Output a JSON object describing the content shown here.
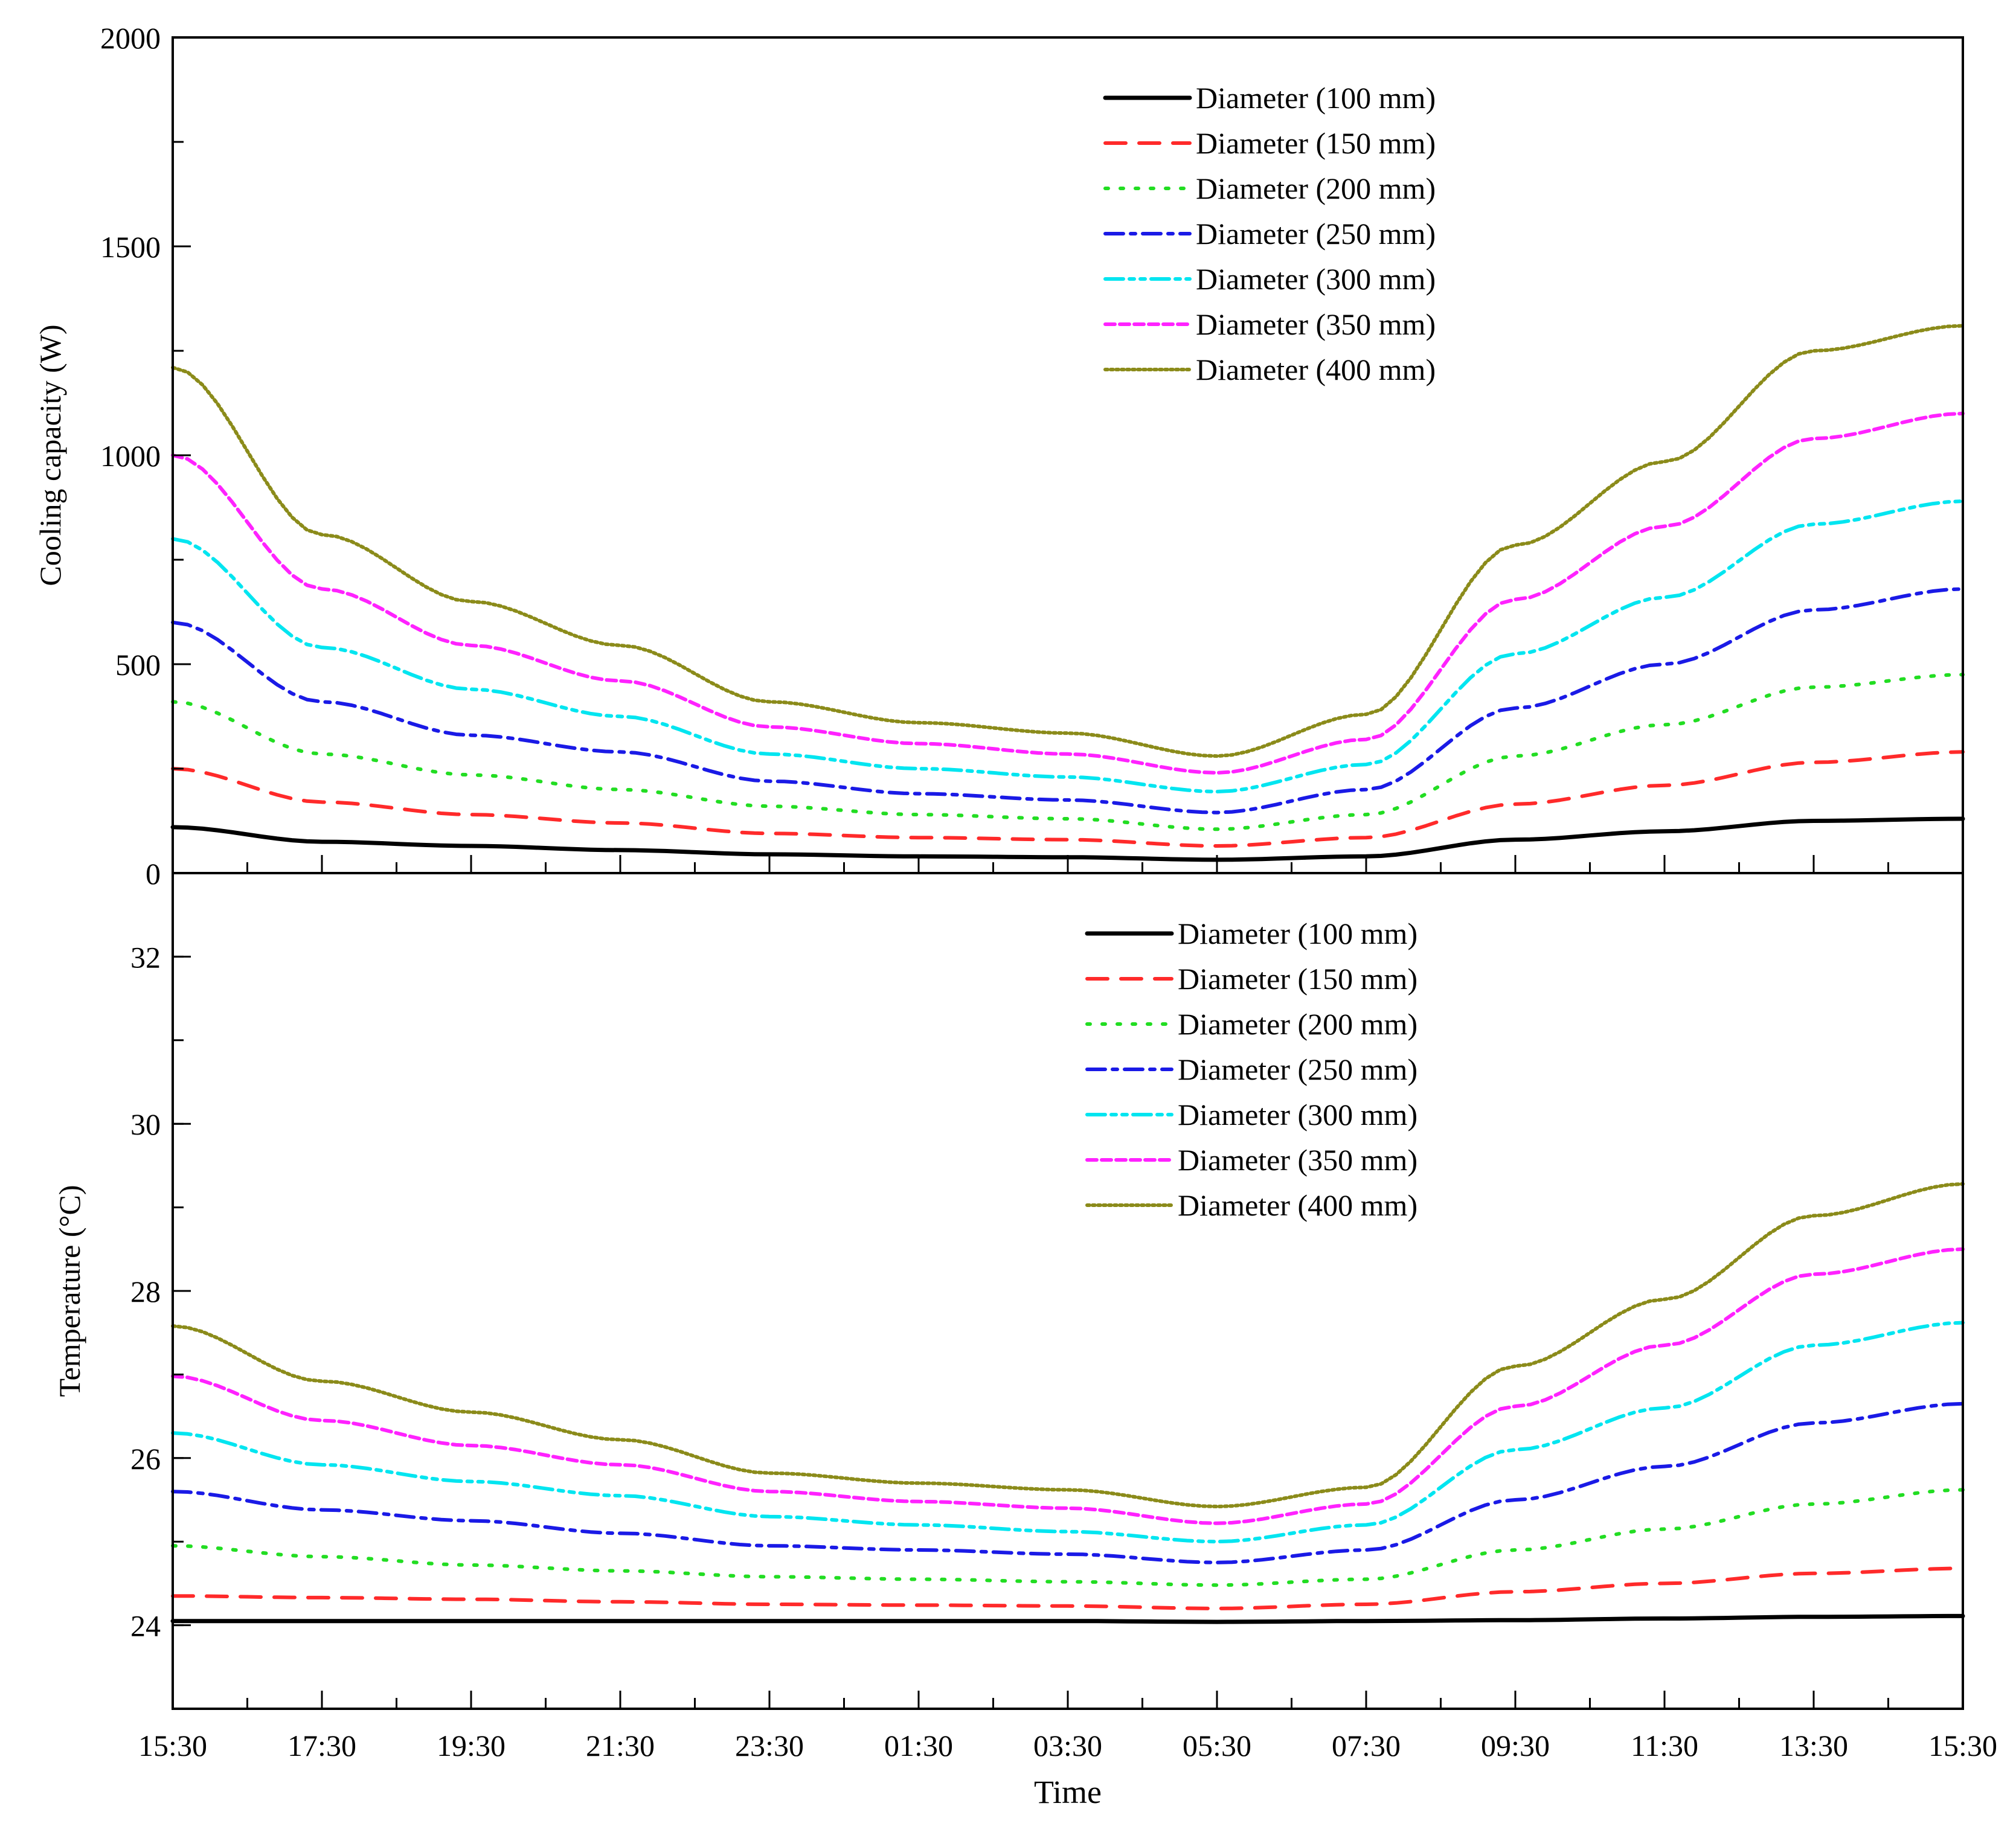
{
  "chart_data": [
    {
      "type": "line",
      "title": "",
      "xlabel": "Time",
      "ylabel": "Cooling capacity (W)",
      "ylim": [
        0,
        2000
      ],
      "yticks": [
        "0",
        "500",
        "1000",
        "1500",
        "2000"
      ],
      "categories": [
        "15:30",
        "17:30",
        "19:30",
        "21:30",
        "23:30",
        "01:30",
        "03:30",
        "05:30",
        "07:30",
        "09:30",
        "11:30",
        "13:30",
        "15:30"
      ],
      "legend_position": "top-right",
      "series": [
        {
          "name": "Diameter (100 mm)",
          "color": "#000000",
          "style": "solid",
          "values": [
            110,
            75,
            65,
            55,
            45,
            40,
            38,
            32,
            40,
            80,
            100,
            125,
            130
          ]
        },
        {
          "name": "Diameter (150 mm)",
          "color": "#ff2a2a",
          "style": "dash",
          "values": [
            250,
            170,
            140,
            120,
            95,
            85,
            80,
            65,
            85,
            165,
            210,
            265,
            290
          ]
        },
        {
          "name": "Diameter (200 mm)",
          "color": "#22dd22",
          "style": "dot",
          "values": [
            410,
            285,
            235,
            200,
            160,
            140,
            130,
            105,
            140,
            280,
            355,
            445,
            475
          ]
        },
        {
          "name": "Diameter (250 mm)",
          "color": "#1a1ae6",
          "style": "dashdot",
          "values": [
            600,
            410,
            330,
            290,
            220,
            190,
            175,
            145,
            200,
            395,
            500,
            630,
            680
          ]
        },
        {
          "name": "Diameter (300 mm)",
          "color": "#00e5f0",
          "style": "dashdotdot",
          "values": [
            800,
            540,
            440,
            375,
            285,
            250,
            230,
            195,
            260,
            525,
            660,
            835,
            890
          ]
        },
        {
          "name": "Diameter (350 mm)",
          "color": "#ff22ff",
          "style": "shortdash",
          "values": [
            1000,
            680,
            545,
            460,
            350,
            310,
            285,
            240,
            320,
            655,
            830,
            1040,
            1100
          ]
        },
        {
          "name": "Diameter (400 mm)",
          "color": "#8b8b1a",
          "style": "shortdot",
          "values": [
            1210,
            810,
            650,
            545,
            410,
            360,
            335,
            280,
            380,
            785,
            985,
            1250,
            1310
          ]
        }
      ]
    },
    {
      "type": "line",
      "title": "",
      "xlabel": "Time",
      "ylabel": "Temperature (°C)",
      "ylim": [
        23,
        33
      ],
      "yticks": [
        "24",
        "26",
        "28",
        "30",
        "32"
      ],
      "categories": [
        "15:30",
        "17:30",
        "19:30",
        "21:30",
        "23:30",
        "01:30",
        "03:30",
        "05:30",
        "07:30",
        "09:30",
        "11:30",
        "13:30",
        "15:30"
      ],
      "legend_position": "top-right",
      "series": [
        {
          "name": "Diameter (100 mm)",
          "color": "#000000",
          "style": "solid",
          "values": [
            24.05,
            24.05,
            24.05,
            24.05,
            24.05,
            24.05,
            24.05,
            24.04,
            24.05,
            24.06,
            24.08,
            24.1,
            24.11
          ]
        },
        {
          "name": "Diameter (150 mm)",
          "color": "#ff2a2a",
          "style": "dash",
          "values": [
            24.35,
            24.33,
            24.31,
            24.28,
            24.25,
            24.24,
            24.23,
            24.2,
            24.25,
            24.4,
            24.5,
            24.62,
            24.68
          ]
        },
        {
          "name": "Diameter (200 mm)",
          "color": "#22dd22",
          "style": "dot",
          "values": [
            24.95,
            24.82,
            24.72,
            24.65,
            24.58,
            24.55,
            24.52,
            24.48,
            24.55,
            24.9,
            25.15,
            25.45,
            25.62
          ]
        },
        {
          "name": "Diameter (250 mm)",
          "color": "#1a1ae6",
          "style": "dashdot",
          "values": [
            25.6,
            25.38,
            25.25,
            25.1,
            24.95,
            24.9,
            24.85,
            24.75,
            24.9,
            25.5,
            25.9,
            26.42,
            26.65
          ]
        },
        {
          "name": "Diameter (300 mm)",
          "color": "#00e5f0",
          "style": "dashdotdot",
          "values": [
            26.3,
            25.92,
            25.72,
            25.55,
            25.3,
            25.2,
            25.12,
            25.0,
            25.2,
            26.1,
            26.6,
            27.35,
            27.62
          ]
        },
        {
          "name": "Diameter (350 mm)",
          "color": "#ff22ff",
          "style": "shortdash",
          "values": [
            26.98,
            26.45,
            26.15,
            25.92,
            25.6,
            25.48,
            25.4,
            25.22,
            25.45,
            26.62,
            27.35,
            28.2,
            28.5
          ]
        },
        {
          "name": "Diameter (400 mm)",
          "color": "#8b8b1a",
          "style": "shortdot",
          "values": [
            27.58,
            26.92,
            26.55,
            26.22,
            25.82,
            25.7,
            25.62,
            25.42,
            25.65,
            27.1,
            27.9,
            28.9,
            29.28
          ]
        }
      ]
    }
  ]
}
